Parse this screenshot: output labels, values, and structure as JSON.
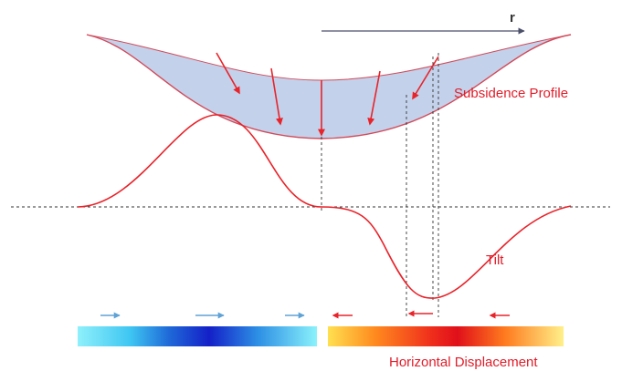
{
  "labels": {
    "axis": "r",
    "subsidence": "Subsidence Profile",
    "tilt": "Tilt",
    "horizontal": "Horizontal Displacement"
  },
  "colors": {
    "curve": "#e8232a",
    "basin_fill": "#c3d1ea",
    "basin_edge": "#d24a5a",
    "dash": "#333333",
    "axis_arrow": "#4a4f6a",
    "blue_arrow": "#5fa2d6",
    "label_red": "#e11d2a"
  },
  "icons": {
    "left_arrows": "right-arrow-icon",
    "right_arrows": "left-arrow-icon"
  }
}
